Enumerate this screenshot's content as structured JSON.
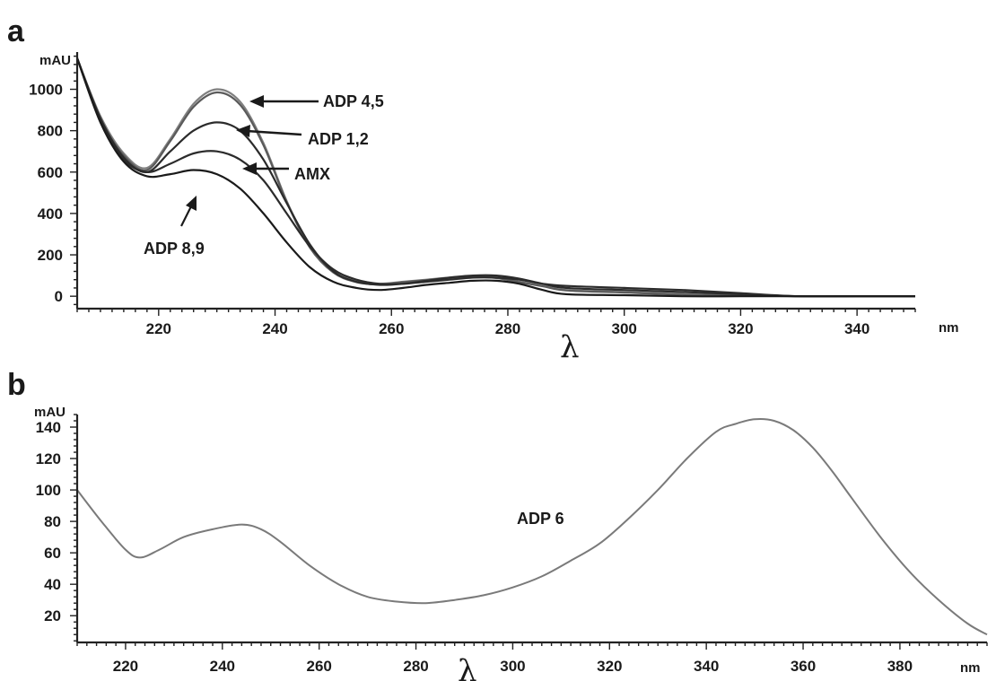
{
  "chart_data": [
    {
      "panel": "a",
      "type": "line",
      "ylabel": "mAU",
      "xunit": "nm",
      "xsymbol": "λ",
      "xlim": [
        206,
        350
      ],
      "ylim": [
        -60,
        1180
      ],
      "xticks": [
        220,
        240,
        260,
        280,
        300,
        320,
        340
      ],
      "yticks": [
        0,
        200,
        400,
        600,
        800,
        1000
      ],
      "colors": {
        "dark": "#2b2b2b",
        "light": "#7a7a7a"
      },
      "series": [
        {
          "name": "ADP 4,5",
          "color": "#808080",
          "x": [
            206,
            210,
            214,
            218,
            222,
            226,
            230,
            234,
            238,
            242,
            246,
            250,
            254,
            258,
            262,
            266,
            270,
            274,
            278,
            282,
            286,
            290,
            300,
            310,
            320,
            330,
            340,
            350
          ],
          "y": [
            1150,
            870,
            690,
            620,
            760,
            930,
            1000,
            940,
            740,
            460,
            240,
            120,
            70,
            60,
            70,
            80,
            90,
            95,
            90,
            70,
            50,
            30,
            20,
            10,
            5,
            0,
            0,
            0
          ]
        },
        {
          "name": "ADP 4,5",
          "color": "#5a5a5a",
          "x": [
            206,
            210,
            214,
            218,
            222,
            226,
            230,
            234,
            238,
            242,
            246,
            250,
            254,
            258,
            262,
            266,
            270,
            274,
            278,
            282,
            286,
            290,
            300,
            310,
            320,
            330,
            340,
            350
          ],
          "y": [
            1150,
            860,
            680,
            610,
            750,
            915,
            985,
            925,
            730,
            455,
            235,
            115,
            68,
            58,
            68,
            78,
            88,
            92,
            88,
            68,
            48,
            28,
            18,
            8,
            4,
            0,
            0,
            0
          ]
        },
        {
          "name": "ADP 1,2",
          "color": "#2b2b2b",
          "x": [
            206,
            210,
            214,
            218,
            222,
            226,
            230,
            234,
            238,
            242,
            246,
            250,
            254,
            258,
            262,
            266,
            270,
            274,
            278,
            282,
            286,
            290,
            300,
            310,
            320,
            330,
            340,
            350
          ],
          "y": [
            1150,
            860,
            670,
            600,
            700,
            800,
            840,
            800,
            660,
            450,
            250,
            120,
            70,
            55,
            60,
            75,
            90,
            100,
            100,
            85,
            60,
            40,
            30,
            20,
            10,
            0,
            0,
            0
          ]
        },
        {
          "name": "AMX",
          "color": "#2b2b2b",
          "x": [
            206,
            210,
            214,
            218,
            222,
            226,
            230,
            234,
            238,
            242,
            246,
            250,
            254,
            258,
            262,
            266,
            270,
            274,
            278,
            282,
            286,
            290,
            300,
            310,
            320,
            330,
            340,
            350
          ],
          "y": [
            1150,
            850,
            660,
            600,
            640,
            690,
            700,
            660,
            560,
            400,
            240,
            130,
            80,
            60,
            60,
            70,
            80,
            90,
            90,
            80,
            60,
            50,
            40,
            30,
            15,
            0,
            0,
            0
          ]
        },
        {
          "name": "ADP 8,9",
          "color": "#1a1a1a",
          "x": [
            206,
            210,
            214,
            218,
            222,
            226,
            230,
            234,
            238,
            242,
            246,
            250,
            254,
            258,
            262,
            266,
            270,
            274,
            278,
            282,
            286,
            290,
            300,
            310,
            320,
            330,
            340,
            350
          ],
          "y": [
            1150,
            840,
            650,
            580,
            590,
            610,
            590,
            520,
            400,
            260,
            140,
            70,
            40,
            30,
            40,
            55,
            65,
            75,
            75,
            60,
            30,
            10,
            5,
            0,
            0,
            0,
            0,
            0
          ]
        }
      ],
      "annotations": [
        {
          "label": "ADP 4,5"
        },
        {
          "label": "ADP 1,2"
        },
        {
          "label": "AMX"
        },
        {
          "label": "ADP 8,9"
        }
      ]
    },
    {
      "panel": "b",
      "type": "line",
      "ylabel": "mAU",
      "xunit": "nm",
      "xsymbol": "λ",
      "xlim": [
        210,
        398
      ],
      "ylim": [
        3,
        148
      ],
      "xticks": [
        220,
        240,
        260,
        280,
        300,
        320,
        340,
        360,
        380
      ],
      "yticks": [
        20,
        40,
        60,
        80,
        100,
        120,
        140
      ],
      "series": [
        {
          "name": "ADP 6",
          "color": "#7a7a7a",
          "x": [
            210,
            215,
            220,
            223,
            227,
            232,
            238,
            244,
            248,
            252,
            258,
            264,
            270,
            276,
            282,
            288,
            294,
            300,
            306,
            312,
            318,
            324,
            330,
            336,
            342,
            346,
            350,
            354,
            358,
            362,
            366,
            370,
            376,
            382,
            388,
            394,
            398
          ],
          "y": [
            100,
            80,
            62,
            57,
            62,
            70,
            75,
            78,
            75,
            67,
            52,
            40,
            32,
            29,
            28,
            30,
            33,
            38,
            45,
            55,
            66,
            82,
            100,
            120,
            137,
            142,
            145,
            144,
            138,
            127,
            112,
            95,
            70,
            48,
            30,
            15,
            8
          ]
        }
      ],
      "annotations": [
        {
          "label": "ADP 6"
        }
      ]
    }
  ]
}
